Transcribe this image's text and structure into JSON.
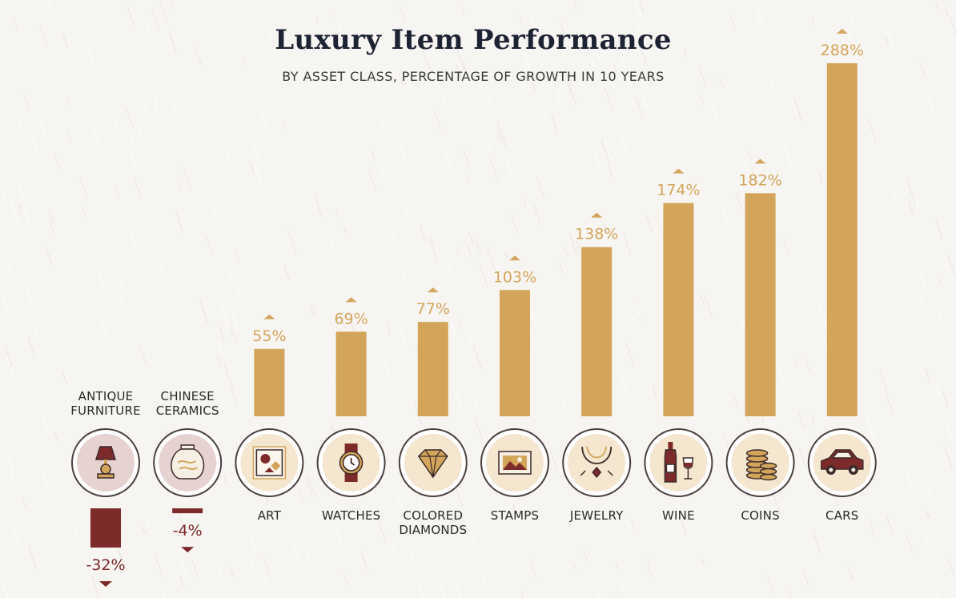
{
  "title": "Luxury Item Performance",
  "subtitle": "BY ASSET CLASS, PERCENTAGE OF GROWTH IN 10 YEARS",
  "colors": {
    "positive": "#d3a55b",
    "negative": "#7d2a2b",
    "title": "#1d2333",
    "icon_ring": "#4a4040",
    "icon_fill_positive": "#f4e6cf",
    "icon_fill_negative": "#e6d3d1"
  },
  "chart_data": {
    "type": "bar",
    "title": "Luxury Item Performance",
    "subtitle": "BY ASSET CLASS, PERCENTAGE OF GROWTH IN 10 YEARS",
    "categories": [
      "ANTIQUE FURNITURE",
      "CHINESE CERAMICS",
      "ART",
      "WATCHES",
      "COLORED DIAMONDS",
      "STAMPS",
      "JEWELRY",
      "WINE",
      "COINS",
      "CARS"
    ],
    "category_label_lines": [
      [
        "ANTIQUE",
        "FURNITURE"
      ],
      [
        "CHINESE",
        "CERAMICS"
      ],
      [
        "ART"
      ],
      [
        "WATCHES"
      ],
      [
        "COLORED",
        "DIAMONDS"
      ],
      [
        "STAMPS"
      ],
      [
        "JEWELRY"
      ],
      [
        "WINE"
      ],
      [
        "COINS"
      ],
      [
        "CARS"
      ]
    ],
    "values": [
      -32,
      -4,
      55,
      69,
      77,
      103,
      138,
      174,
      182,
      288
    ],
    "value_labels": [
      "-32%",
      "-4%",
      "55%",
      "69%",
      "77%",
      "103%",
      "138%",
      "174%",
      "182%",
      "288%"
    ],
    "icons": [
      "lamp-icon",
      "vase-icon",
      "painting-icon",
      "watch-icon",
      "diamond-icon",
      "stamp-icon",
      "necklace-icon",
      "wine-icon",
      "coins-icon",
      "car-icon"
    ],
    "unit": "%",
    "grid": false,
    "legend": "none"
  }
}
